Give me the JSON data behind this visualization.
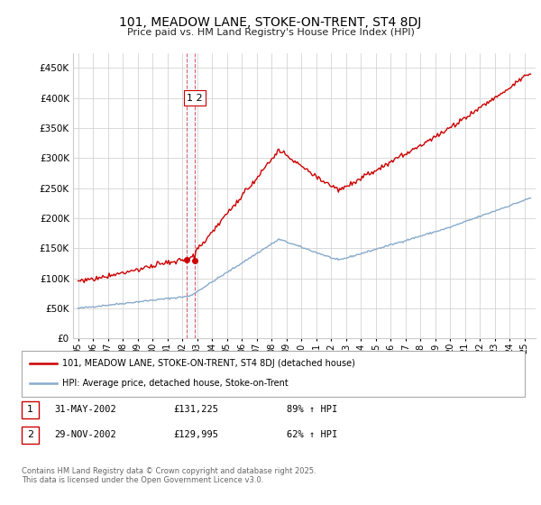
{
  "title": "101, MEADOW LANE, STOKE-ON-TRENT, ST4 8DJ",
  "subtitle": "Price paid vs. HM Land Registry's House Price Index (HPI)",
  "sale1_date_str": "2002-05-01",
  "sale2_date_str": "2002-11-01",
  "sale1_price": 131225,
  "sale2_price": 129995,
  "red_line_color": "#cc0000",
  "blue_line_color": "#88aacc",
  "vline_color": "#cc0000",
  "shade_color": "#ddeeff",
  "legend_red_label": "101, MEADOW LANE, STOKE-ON-TRENT, ST4 8DJ (detached house)",
  "legend_blue_label": "HPI: Average price, detached house, Stoke-on-Trent",
  "table_rows": [
    {
      "num": "1",
      "date": "31-MAY-2002",
      "price": "£131,225",
      "hpi": "89% ↑ HPI"
    },
    {
      "num": "2",
      "date": "29-NOV-2002",
      "price": "£129,995",
      "hpi": "62% ↑ HPI"
    }
  ],
  "footer": "Contains HM Land Registry data © Crown copyright and database right 2025.\nThis data is licensed under the Open Government Licence v3.0.",
  "ylim_max": 475000,
  "ylim_min": 0,
  "background_color": "#ffffff",
  "plot_bg_color": "#ffffff",
  "grid_color": "#cccccc"
}
